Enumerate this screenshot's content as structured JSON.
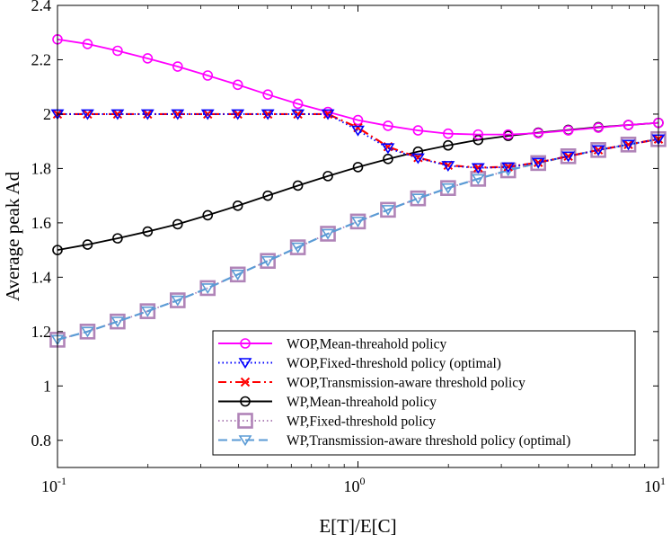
{
  "chart_data": {
    "type": "line",
    "xlabel": "E[T]/E[C]",
    "ylabel": "Average peak Ad",
    "xscale": "log",
    "xlim": [
      0.1,
      10
    ],
    "ylim": [
      0.7,
      2.4
    ],
    "xticks": [
      {
        "value": 0.1,
        "base": "10",
        "exp": "-1"
      },
      {
        "value": 1,
        "base": "10",
        "exp": "0"
      },
      {
        "value": 10,
        "base": "10",
        "exp": "1"
      }
    ],
    "yticks": [
      "0.8",
      "1",
      "1.2",
      "1.4",
      "1.6",
      "1.8",
      "2",
      "2.2",
      "2.4"
    ],
    "grid": false,
    "legend_position": "bottom-right",
    "x": [
      0.1,
      0.1259,
      0.1585,
      0.1995,
      0.2512,
      0.3162,
      0.3981,
      0.5012,
      0.631,
      0.7943,
      1,
      1.2589,
      1.5849,
      1.9953,
      2.5119,
      3.1623,
      3.9811,
      5.0119,
      6.3096,
      7.9433,
      10
    ],
    "series": [
      {
        "name": "WOP,Mean-threahold policy",
        "color": "#ff00ff",
        "dash": "solid",
        "marker": "circle",
        "values": [
          2.275,
          2.258,
          2.233,
          2.205,
          2.175,
          2.142,
          2.108,
          2.072,
          2.038,
          2.008,
          1.978,
          1.957,
          1.94,
          1.928,
          1.925,
          1.925,
          1.93,
          1.94,
          1.95,
          1.96,
          1.968
        ]
      },
      {
        "name": "WOP,Fixed-threshold policy (optimal)",
        "color": "#0000ff",
        "dash": "dotted",
        "marker": "triangle-down",
        "values": [
          2.0,
          2.0,
          2.0,
          2.0,
          2.0,
          2.0,
          2.0,
          2.0,
          2.0,
          2.0,
          1.94,
          1.875,
          1.838,
          1.81,
          1.802,
          1.805,
          1.822,
          1.845,
          1.868,
          1.888,
          1.908
        ]
      },
      {
        "name": "WOP,Transmission-aware threshold policy",
        "color": "#ff0000",
        "dash": "dash-dot",
        "marker": "x",
        "values": [
          2.0,
          2.0,
          2.0,
          2.0,
          2.0,
          2.0,
          2.0,
          2.0,
          2.0,
          2.0,
          1.95,
          1.88,
          1.84,
          1.812,
          1.803,
          1.806,
          1.822,
          1.845,
          1.868,
          1.888,
          1.908
        ]
      },
      {
        "name": "WP,Mean-threahold policy",
        "color": "#000000",
        "dash": "solid",
        "marker": "circle",
        "values": [
          1.5,
          1.52,
          1.543,
          1.568,
          1.595,
          1.628,
          1.663,
          1.7,
          1.737,
          1.772,
          1.805,
          1.835,
          1.862,
          1.885,
          1.905,
          1.92,
          1.932,
          1.942,
          1.952,
          1.96,
          1.968
        ]
      },
      {
        "name": "WP,Fixed-threshold policy",
        "color": "#b084b8",
        "dash": "dotted",
        "marker": "square",
        "values": [
          1.17,
          1.2,
          1.237,
          1.275,
          1.315,
          1.36,
          1.41,
          1.46,
          1.51,
          1.56,
          1.605,
          1.648,
          1.69,
          1.728,
          1.762,
          1.793,
          1.82,
          1.845,
          1.868,
          1.888,
          1.908
        ]
      },
      {
        "name": "WP,Transmission-aware threshold policy (optimal)",
        "color": "#5b9bd5",
        "dash": "dashed",
        "marker": "triangle-down",
        "values": [
          1.17,
          1.2,
          1.237,
          1.275,
          1.315,
          1.36,
          1.41,
          1.46,
          1.51,
          1.56,
          1.605,
          1.648,
          1.69,
          1.728,
          1.762,
          1.793,
          1.82,
          1.845,
          1.868,
          1.888,
          1.908
        ]
      }
    ]
  }
}
